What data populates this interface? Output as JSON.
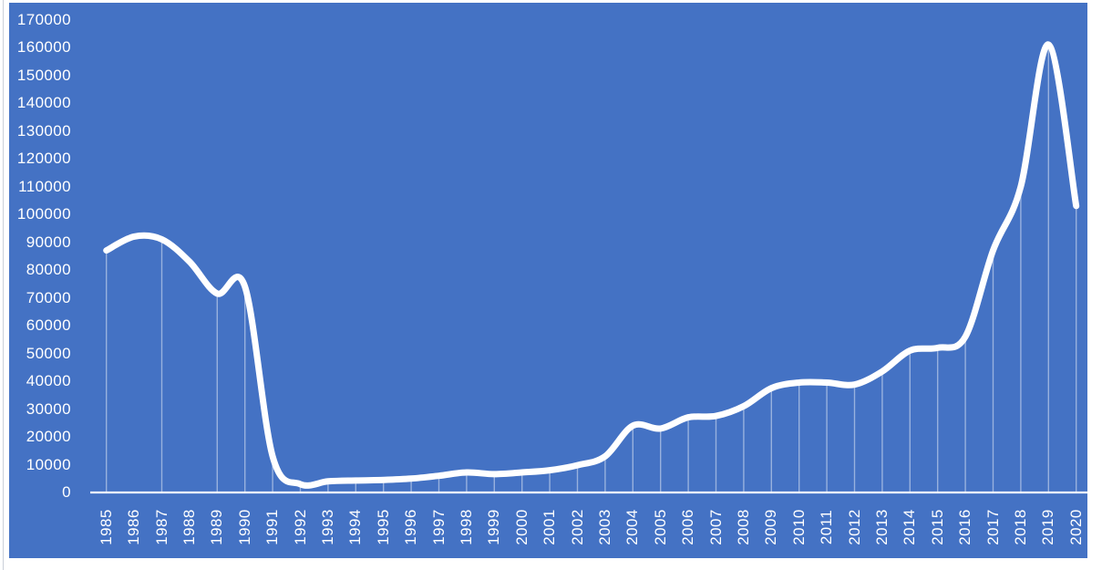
{
  "chart_data": {
    "type": "line",
    "title": "",
    "xlabel": "",
    "ylabel": "",
    "smooth": true,
    "markers": false,
    "legend": null,
    "grid": false,
    "categories": [
      "1985",
      "1986",
      "1987",
      "1988",
      "1989",
      "1990",
      "1991",
      "1992",
      "1993",
      "1994",
      "1995",
      "1996",
      "1997",
      "1998",
      "1999",
      "2000",
      "2001",
      "2002",
      "2003",
      "2004",
      "2005",
      "2006",
      "2007",
      "2008",
      "2009",
      "2010",
      "2011",
      "2012",
      "2013",
      "2014",
      "2015",
      "2016",
      "2017",
      "2018",
      "2019",
      "2020"
    ],
    "values": [
      87000,
      92000,
      91000,
      83000,
      71500,
      74000,
      13000,
      3000,
      4000,
      4300,
      4500,
      5000,
      6000,
      7200,
      6600,
      7200,
      8000,
      9800,
      13000,
      24000,
      23000,
      27000,
      27500,
      31000,
      37500,
      39500,
      39500,
      38800,
      43500,
      51000,
      52000,
      56000,
      87000,
      110000,
      161000,
      103000
    ],
    "ylim": [
      0,
      170000
    ],
    "y_tick_step": 10000,
    "y_tick_labels": [
      "0",
      "10000",
      "20000",
      "30000",
      "40000",
      "50000",
      "60000",
      "70000",
      "80000",
      "90000",
      "100000",
      "110000",
      "120000",
      "130000",
      "140000",
      "150000",
      "160000",
      "170000"
    ],
    "droplines": true,
    "droplines_missing_years": [
      "1986",
      "1988"
    ]
  },
  "style": {
    "page_background": "#FFFFFF",
    "plot_background": "#4472C4",
    "line_color": "#FFFFFF",
    "axis_line_color": "#FFFFFF",
    "dropline_color": "#FFFFFF",
    "dropline_opacity": 0.45,
    "label_color": "#FFFFFF",
    "edge_line_color": "#8C96AA"
  }
}
